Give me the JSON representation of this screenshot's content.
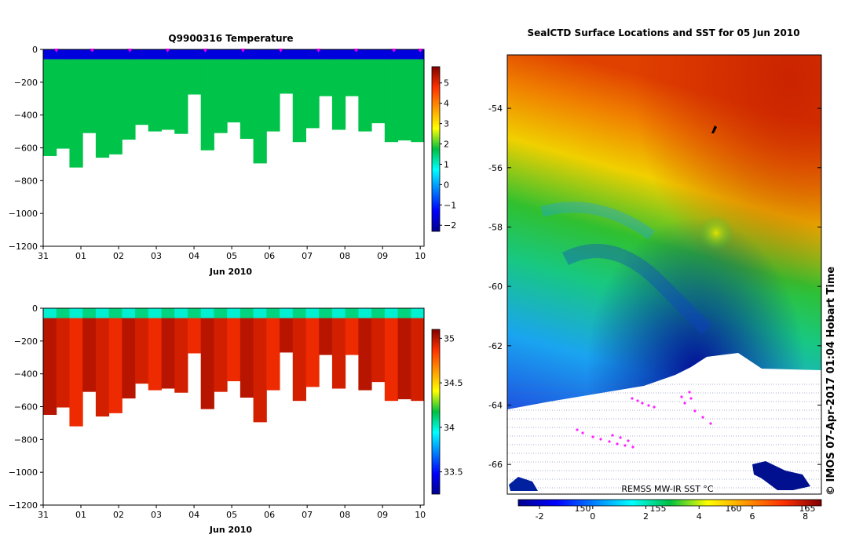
{
  "chart_data": [
    {
      "id": "temperature",
      "type": "heatmap",
      "title": "Q9900316  Temperature",
      "xlabel": "Jun 2010",
      "x_ticks": [
        "31",
        "01",
        "02",
        "03",
        "04",
        "05",
        "06",
        "07",
        "08",
        "09",
        "10"
      ],
      "x_range_days": [
        0,
        10.1
      ],
      "ylim": [
        -1200,
        0
      ],
      "y_ticks": [
        0,
        -200,
        -400,
        -600,
        -800,
        -1000,
        -1200
      ],
      "y_tick_labels": [
        "0",
        "−200",
        "−400",
        "−600",
        "−800",
        "−1000",
        "−1200"
      ],
      "colorbar": {
        "min": -2.3,
        "max": 5.8,
        "ticks": [
          5,
          4,
          3,
          2,
          1,
          0,
          -1,
          -2
        ],
        "tick_labels": [
          "5",
          "4",
          "3",
          "2",
          "1",
          "0",
          "−1",
          "−2"
        ]
      },
      "surface_markers_day": [
        0.35,
        1.3,
        2.3,
        3.3,
        4.3,
        5.3,
        6.3,
        7.3,
        8.3,
        9.3,
        10.0
      ],
      "surface_band": {
        "from_m": 0,
        "to_m": -60,
        "value": -1.6
      },
      "body_value": 1.7,
      "profiles_max_depth_m": [
        -650,
        -605,
        -720,
        -510,
        -660,
        -640,
        -550,
        -460,
        -500,
        -490,
        -515,
        -275,
        -615,
        -510,
        -445,
        -545,
        -695,
        -500,
        -270,
        -565,
        -480,
        -285,
        -490,
        -285,
        -500,
        -450,
        -565,
        -555,
        -565
      ]
    },
    {
      "id": "salinity",
      "type": "heatmap",
      "title": "",
      "xlabel": "Jun 2010",
      "x_ticks": [
        "31",
        "01",
        "02",
        "03",
        "04",
        "05",
        "06",
        "07",
        "08",
        "09",
        "10"
      ],
      "x_range_days": [
        0,
        10.1
      ],
      "ylim": [
        -1200,
        0
      ],
      "y_ticks": [
        0,
        -200,
        -400,
        -600,
        -800,
        -1000,
        -1200
      ],
      "y_tick_labels": [
        "0",
        "−200",
        "−400",
        "−600",
        "−800",
        "−1000",
        "−1200"
      ],
      "colorbar": {
        "min": 33.25,
        "max": 35.1,
        "ticks": [
          35,
          34.5,
          34,
          33.5
        ],
        "tick_labels": [
          "35",
          "34.5",
          "34",
          "33.5"
        ]
      },
      "surface_band_value": 34.0,
      "body_value": 35.0
    },
    {
      "id": "sst_map",
      "type": "heatmap",
      "title": "SealCTD Surface Locations and SST for 05 Jun 2010",
      "ylim": [
        -67,
        -52.2
      ],
      "y_ticks": [
        -54,
        -56,
        -58,
        -60,
        -62,
        -64,
        -66
      ],
      "y_tick_labels": [
        "-54",
        "-56",
        "-58",
        "-60",
        "-62",
        "-64",
        "-66"
      ],
      "lon_ticks": [
        "150",
        "155",
        "160",
        "165"
      ],
      "colorbar": {
        "min": -2.8,
        "max": 8.6,
        "ticks": [
          -2,
          0,
          2,
          4,
          6,
          8
        ],
        "tick_labels": [
          "-2",
          "0",
          "2",
          "4",
          "6",
          "8"
        ]
      },
      "data_label": "REMSS MW-IR SST °C",
      "credit": "©  IMOS 07-Apr-2017 01:04 Hobart Time"
    }
  ]
}
